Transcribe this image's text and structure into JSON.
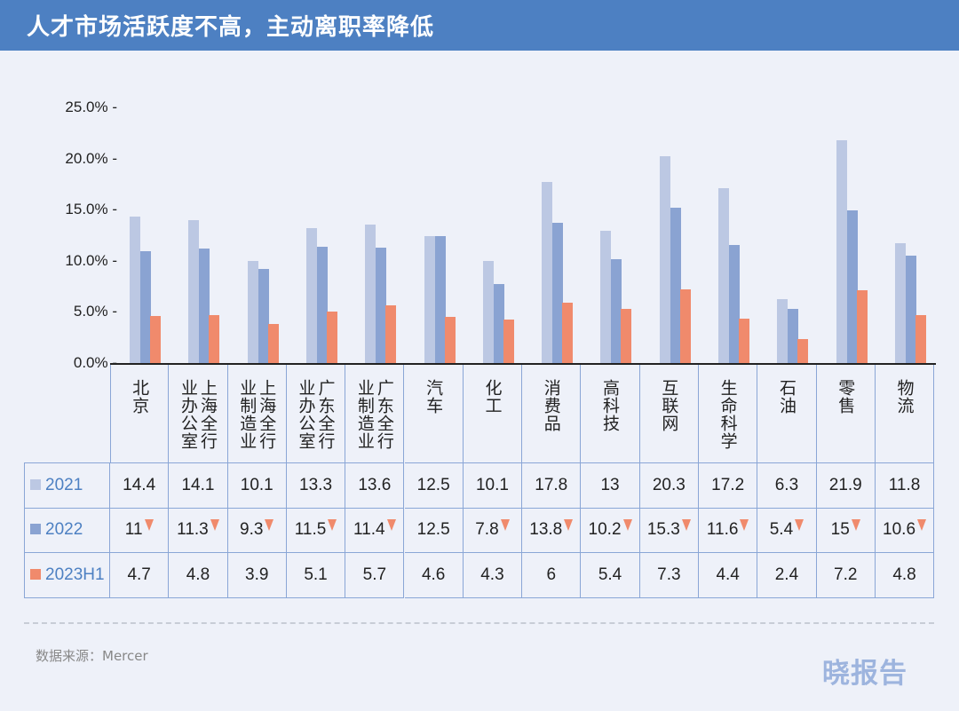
{
  "title": "人才市场活跃度不高，主动离职率降低",
  "source": "数据来源：Mercer",
  "logo": "晓报告",
  "colors": {
    "2021": "#bcc8e3",
    "2022": "#8aa3d2",
    "2023H1": "#f08a6c",
    "header": "#4d80c2",
    "grid": "#8aa6d6"
  },
  "chart_data": {
    "type": "bar",
    "title": "人才市场活跃度不高，主动离职率降低",
    "ylabel": "",
    "xlabel": "",
    "ylim": [
      0,
      25
    ],
    "yticks": [
      "0.0%",
      "5.0%",
      "10.0%",
      "15.0%",
      "20.0%",
      "25.0%"
    ],
    "categories": [
      "北京",
      "上海全行业办公室",
      "上海全行业制造业",
      "广东全行业办公室",
      "广东全行业制造业",
      "汽车",
      "化工",
      "消费品",
      "高科技",
      "互联网",
      "生命科学",
      "石油",
      "零售",
      "物流"
    ],
    "series": [
      {
        "name": "2021",
        "values": [
          14.4,
          14.1,
          10.1,
          13.3,
          13.6,
          12.5,
          10.1,
          17.8,
          13,
          20.3,
          17.2,
          6.3,
          21.9,
          11.8
        ]
      },
      {
        "name": "2022",
        "values": [
          11,
          11.3,
          9.3,
          11.5,
          11.4,
          12.5,
          7.8,
          13.8,
          10.2,
          15.3,
          11.6,
          5.4,
          15,
          10.6
        ],
        "decrease_marker": [
          true,
          true,
          true,
          true,
          true,
          false,
          true,
          true,
          true,
          true,
          true,
          true,
          true,
          true
        ]
      },
      {
        "name": "2023H1",
        "values": [
          4.7,
          4.8,
          3.9,
          5.1,
          5.7,
          4.6,
          4.3,
          6,
          5.4,
          7.3,
          4.4,
          2.4,
          7.2,
          4.8
        ]
      }
    ],
    "legend": "table-left"
  }
}
